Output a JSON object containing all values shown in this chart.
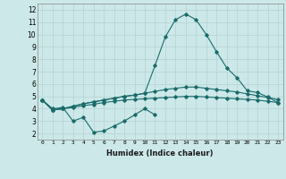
{
  "xlabel": "Humidex (Indice chaleur)",
  "x_ticks": [
    0,
    1,
    2,
    3,
    4,
    5,
    6,
    7,
    8,
    9,
    10,
    11,
    12,
    13,
    14,
    15,
    16,
    17,
    18,
    19,
    20,
    21,
    22,
    23
  ],
  "xlim": [
    -0.5,
    23.5
  ],
  "ylim": [
    1.5,
    12.5
  ],
  "y_ticks": [
    2,
    3,
    4,
    5,
    6,
    7,
    8,
    9,
    10,
    11,
    12
  ],
  "bg_color": "#cce8e8",
  "grid_color": "#b8d4d4",
  "line_color": "#1a6b6b",
  "line1_x": [
    0,
    1,
    2,
    3,
    4,
    5,
    6,
    7,
    8,
    9,
    10,
    11
  ],
  "line1_y": [
    4.7,
    4.0,
    4.1,
    3.0,
    3.3,
    2.1,
    2.2,
    2.6,
    3.0,
    3.5,
    4.0,
    3.5
  ],
  "line2_x": [
    0,
    1,
    2,
    3,
    4,
    5,
    6,
    7,
    8,
    9,
    10,
    11,
    12,
    13,
    14,
    15,
    16,
    17,
    18,
    19,
    20,
    21,
    22,
    23
  ],
  "line2_y": [
    4.7,
    3.9,
    4.0,
    4.1,
    4.25,
    4.35,
    4.5,
    4.6,
    4.7,
    4.75,
    4.8,
    4.85,
    4.9,
    4.95,
    5.0,
    5.0,
    4.95,
    4.9,
    4.85,
    4.8,
    4.75,
    4.7,
    4.6,
    4.5
  ],
  "line3_x": [
    0,
    1,
    2,
    3,
    4,
    5,
    6,
    7,
    8,
    9,
    10,
    11,
    12,
    13,
    14,
    15,
    16,
    17,
    18,
    19,
    20,
    21,
    22,
    23
  ],
  "line3_y": [
    4.7,
    3.9,
    4.0,
    4.2,
    4.4,
    4.55,
    4.7,
    4.85,
    5.0,
    5.1,
    5.25,
    5.4,
    5.55,
    5.65,
    5.75,
    5.75,
    5.65,
    5.55,
    5.45,
    5.35,
    5.2,
    5.05,
    4.9,
    4.75
  ],
  "line4_x": [
    0,
    1,
    2,
    3,
    4,
    5,
    6,
    7,
    8,
    9,
    10,
    11,
    12,
    13,
    14,
    15,
    16,
    17,
    18,
    19,
    20,
    21,
    22,
    23
  ],
  "line4_y": [
    4.7,
    3.9,
    4.0,
    4.2,
    4.4,
    4.55,
    4.7,
    4.85,
    5.0,
    5.1,
    5.25,
    7.5,
    9.8,
    11.2,
    11.65,
    11.2,
    10.0,
    8.6,
    7.3,
    6.5,
    5.45,
    5.3,
    4.95,
    4.5
  ]
}
